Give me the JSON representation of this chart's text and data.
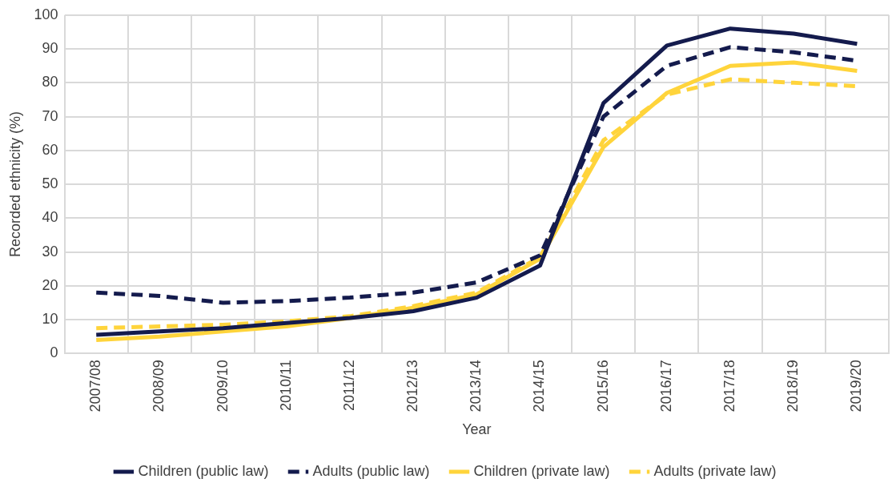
{
  "chart_data": {
    "type": "line",
    "xlabel": "Year",
    "ylabel": "Recorded ethnicity (%)",
    "categories": [
      "2007/08",
      "2008/09",
      "2009/10",
      "2010/11",
      "2011/12",
      "2012/13",
      "2013/14",
      "2014/15",
      "2015/16",
      "2016/17",
      "2017/18",
      "2018/19",
      "2019/20"
    ],
    "series": [
      {
        "name": "Children (public law)",
        "color": "#141b4d",
        "line_style": "solid",
        "values": [
          5.5,
          6.5,
          7.5,
          9,
          10.5,
          12.5,
          16.5,
          26,
          74,
          91,
          96,
          94.5,
          91.5
        ]
      },
      {
        "name": "Adults (public law)",
        "color": "#141b4d",
        "line_style": "dashed",
        "values": [
          18,
          17,
          15,
          15.5,
          16.5,
          18,
          21,
          29,
          70,
          85,
          90.5,
          89,
          86.5
        ]
      },
      {
        "name": "Children (private law)",
        "color": "#ffd43b",
        "line_style": "solid",
        "values": [
          4,
          5,
          6.5,
          8,
          10.5,
          13.5,
          17.5,
          28,
          61,
          77,
          85,
          86,
          83.5
        ]
      },
      {
        "name": "Adults (private law)",
        "color": "#ffd43b",
        "line_style": "dashed",
        "values": [
          7.5,
          8,
          8.5,
          9.5,
          11,
          14,
          18,
          28.5,
          63,
          76.5,
          81,
          80,
          79
        ]
      }
    ],
    "ylim": [
      0,
      100
    ],
    "yticks": [
      0,
      10,
      20,
      30,
      40,
      50,
      60,
      70,
      80,
      90,
      100
    ],
    "grid": true,
    "legend": "bottom",
    "marker": "none"
  }
}
